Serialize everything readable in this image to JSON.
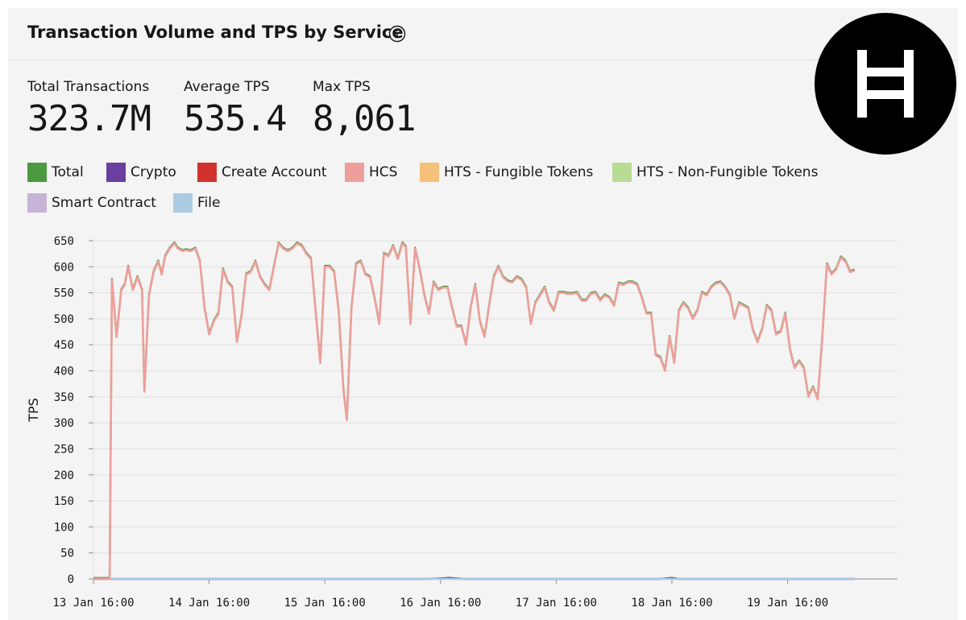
{
  "header": {
    "title": "Transaction Volume and TPS by Service"
  },
  "stats": [
    {
      "label": "Total Transactions",
      "value": "323.7M"
    },
    {
      "label": "Average TPS",
      "value": "535.4"
    },
    {
      "label": "Max TPS",
      "value": "8,061"
    }
  ],
  "colors": {
    "panel_bg": "#f4f4f4",
    "grid": "#e0e0e0",
    "logo_bg": "#000000",
    "logo_fg": "#ffffff"
  },
  "icons": {
    "info": "info-circle-icon",
    "logo": "hedera-logo"
  },
  "legend": [
    {
      "label": "Total",
      "color": "#4c9a3f"
    },
    {
      "label": "Crypto",
      "color": "#6b3fa0"
    },
    {
      "label": "Create Account",
      "color": "#d2322d"
    },
    {
      "label": "HCS",
      "color": "#ee9f9b"
    },
    {
      "label": "HTS - Fungible Tokens",
      "color": "#f5c07a"
    },
    {
      "label": "HTS - Non-Fungible Tokens",
      "color": "#b9dc95"
    },
    {
      "label": "Smart Contract",
      "color": "#c7b3d6"
    },
    {
      "label": "File",
      "color": "#a9cce3"
    }
  ],
  "chart_data": {
    "type": "line",
    "ylabel": "TPS",
    "xlabel": "",
    "ylim": [
      0,
      650
    ],
    "yticks": [
      0,
      50,
      100,
      150,
      200,
      250,
      300,
      350,
      400,
      450,
      500,
      550,
      600,
      650
    ],
    "xlim": [
      0,
      6.95
    ],
    "xticks": [
      {
        "value": 0,
        "label": "13 Jan 16:00"
      },
      {
        "value": 1,
        "label": "14 Jan 16:00"
      },
      {
        "value": 2,
        "label": "15 Jan 16:00"
      },
      {
        "value": 3,
        "label": "16 Jan 16:00"
      },
      {
        "value": 4,
        "label": "17 Jan 16:00"
      },
      {
        "value": 5,
        "label": "18 Jan 16:00"
      },
      {
        "value": 6,
        "label": "19 Jan 16:00"
      }
    ],
    "x_unit_note": "days after 13 Jan 16:00",
    "grid": true,
    "series": [
      {
        "name": "HCS",
        "color": "#ee9f9b",
        "points": [
          [
            0,
            0
          ],
          [
            0.06,
            0
          ],
          [
            0.08,
            0
          ],
          [
            0.14,
            0
          ],
          [
            0.16,
            575
          ],
          [
            0.2,
            465
          ],
          [
            0.24,
            555
          ],
          [
            0.27,
            565
          ],
          [
            0.3,
            600
          ],
          [
            0.34,
            555
          ],
          [
            0.38,
            580
          ],
          [
            0.42,
            555
          ],
          [
            0.44,
            360
          ],
          [
            0.48,
            545
          ],
          [
            0.52,
            590
          ],
          [
            0.56,
            610
          ],
          [
            0.59,
            585
          ],
          [
            0.62,
            620
          ],
          [
            0.66,
            635
          ],
          [
            0.7,
            645
          ],
          [
            0.73,
            635
          ],
          [
            0.77,
            630
          ],
          [
            0.8,
            632
          ],
          [
            0.84,
            630
          ],
          [
            0.88,
            635
          ],
          [
            0.92,
            610
          ],
          [
            0.96,
            520
          ],
          [
            1.0,
            470
          ],
          [
            1.04,
            495
          ],
          [
            1.08,
            510
          ],
          [
            1.12,
            595
          ],
          [
            1.16,
            570
          ],
          [
            1.2,
            560
          ],
          [
            1.24,
            455
          ],
          [
            1.28,
            505
          ],
          [
            1.32,
            585
          ],
          [
            1.36,
            590
          ],
          [
            1.4,
            610
          ],
          [
            1.44,
            580
          ],
          [
            1.48,
            565
          ],
          [
            1.52,
            555
          ],
          [
            1.6,
            645
          ],
          [
            1.64,
            635
          ],
          [
            1.68,
            630
          ],
          [
            1.72,
            635
          ],
          [
            1.76,
            645
          ],
          [
            1.8,
            640
          ],
          [
            1.84,
            625
          ],
          [
            1.88,
            615
          ],
          [
            1.92,
            515
          ],
          [
            1.96,
            415
          ],
          [
            2.0,
            600
          ],
          [
            2.04,
            600
          ],
          [
            2.08,
            590
          ],
          [
            2.12,
            515
          ],
          [
            2.16,
            365
          ],
          [
            2.19,
            305
          ],
          [
            2.23,
            520
          ],
          [
            2.27,
            605
          ],
          [
            2.31,
            610
          ],
          [
            2.35,
            585
          ],
          [
            2.39,
            580
          ],
          [
            2.43,
            540
          ],
          [
            2.47,
            490
          ],
          [
            2.51,
            625
          ],
          [
            2.55,
            620
          ],
          [
            2.59,
            640
          ],
          [
            2.63,
            615
          ],
          [
            2.67,
            645
          ],
          [
            2.7,
            638
          ],
          [
            2.74,
            490
          ],
          [
            2.78,
            635
          ],
          [
            2.82,
            595
          ],
          [
            2.86,
            545
          ],
          [
            2.9,
            510
          ],
          [
            2.94,
            570
          ],
          [
            2.98,
            555
          ],
          [
            3.02,
            560
          ],
          [
            3.06,
            560
          ],
          [
            3.1,
            520
          ],
          [
            3.14,
            485
          ],
          [
            3.18,
            485
          ],
          [
            3.22,
            450
          ],
          [
            3.26,
            520
          ],
          [
            3.3,
            565
          ],
          [
            3.34,
            495
          ],
          [
            3.38,
            465
          ],
          [
            3.42,
            525
          ],
          [
            3.46,
            580
          ],
          [
            3.5,
            600
          ],
          [
            3.54,
            580
          ],
          [
            3.58,
            572
          ],
          [
            3.62,
            570
          ],
          [
            3.66,
            580
          ],
          [
            3.7,
            575
          ],
          [
            3.74,
            560
          ],
          [
            3.78,
            490
          ],
          [
            3.82,
            530
          ],
          [
            3.86,
            545
          ],
          [
            3.9,
            560
          ],
          [
            3.94,
            530
          ],
          [
            3.98,
            515
          ],
          [
            4.02,
            550
          ],
          [
            4.06,
            550
          ],
          [
            4.1,
            548
          ],
          [
            4.14,
            548
          ],
          [
            4.18,
            550
          ],
          [
            4.22,
            535
          ],
          [
            4.26,
            535
          ],
          [
            4.3,
            548
          ],
          [
            4.34,
            550
          ],
          [
            4.38,
            535
          ],
          [
            4.42,
            545
          ],
          [
            4.46,
            540
          ],
          [
            4.5,
            525
          ],
          [
            4.54,
            568
          ],
          [
            4.58,
            565
          ],
          [
            4.62,
            570
          ],
          [
            4.66,
            570
          ],
          [
            4.7,
            565
          ],
          [
            4.74,
            540
          ],
          [
            4.78,
            510
          ],
          [
            4.82,
            510
          ],
          [
            4.86,
            430
          ],
          [
            4.9,
            425
          ],
          [
            4.94,
            400
          ],
          [
            4.98,
            465
          ],
          [
            5.02,
            415
          ],
          [
            5.06,
            515
          ],
          [
            5.1,
            530
          ],
          [
            5.14,
            520
          ],
          [
            5.18,
            500
          ],
          [
            5.22,
            515
          ],
          [
            5.26,
            550
          ],
          [
            5.3,
            545
          ],
          [
            5.34,
            560
          ],
          [
            5.38,
            568
          ],
          [
            5.42,
            570
          ],
          [
            5.46,
            560
          ],
          [
            5.5,
            545
          ],
          [
            5.54,
            500
          ],
          [
            5.58,
            530
          ],
          [
            5.62,
            525
          ],
          [
            5.66,
            520
          ],
          [
            5.7,
            478
          ],
          [
            5.74,
            455
          ],
          [
            5.78,
            480
          ],
          [
            5.82,
            525
          ],
          [
            5.86,
            515
          ],
          [
            5.9,
            470
          ],
          [
            5.94,
            475
          ],
          [
            5.98,
            510
          ],
          [
            6.02,
            440
          ],
          [
            6.06,
            405
          ],
          [
            6.1,
            418
          ],
          [
            6.14,
            405
          ],
          [
            6.18,
            350
          ],
          [
            6.22,
            368
          ],
          [
            6.26,
            345
          ],
          [
            6.3,
            465
          ],
          [
            6.34,
            605
          ],
          [
            6.38,
            585
          ],
          [
            6.42,
            595
          ],
          [
            6.46,
            618
          ],
          [
            6.5,
            610
          ],
          [
            6.54,
            590
          ],
          [
            6.58,
            593
          ]
        ]
      },
      {
        "name": "Crypto",
        "color": "#6b3fa0",
        "points": [
          [
            0,
            0
          ],
          [
            2.9,
            0
          ],
          [
            3.0,
            1
          ],
          [
            3.08,
            2
          ],
          [
            3.14,
            1
          ],
          [
            3.2,
            0
          ],
          [
            4.9,
            0
          ],
          [
            5.0,
            2
          ],
          [
            5.06,
            0
          ],
          [
            6.58,
            0
          ]
        ]
      },
      {
        "name": "File",
        "color": "#a9cce3",
        "points": [
          [
            0,
            0
          ],
          [
            6.58,
            0
          ]
        ]
      }
    ]
  }
}
